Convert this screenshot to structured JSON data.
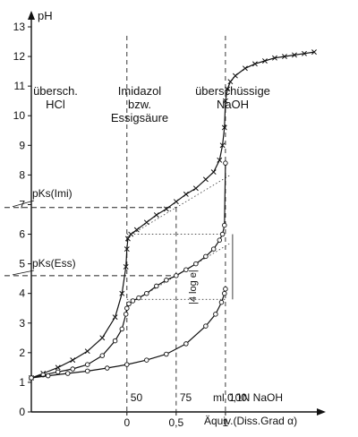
{
  "chart_data": {
    "type": "line",
    "title": "",
    "ylabel": "pH",
    "xlabel": "Äquiv.(Diss.Grad α)",
    "ylim": [
      0,
      13
    ],
    "xlim": [
      -1,
      2
    ],
    "y_ticks": [
      "0",
      "1",
      "2",
      "3",
      "4",
      "5",
      "6",
      "7",
      "8",
      "9",
      "10",
      "11",
      "12",
      "13"
    ],
    "x_ticks": [
      "0",
      "0,5",
      "1"
    ],
    "ml_ticks": [
      "50",
      "75",
      "100"
    ],
    "ml_label": "ml 0,1N NaOH",
    "grid": false,
    "regions": [
      {
        "lines": [
          "übersch.",
          "HCl"
        ]
      },
      {
        "lines": [
          "Imidazol",
          "bzw.",
          "Essigsäure"
        ]
      },
      {
        "lines": [
          "überschüssige",
          "NaOH"
        ]
      }
    ],
    "annotations": {
      "pks_imi": "pKs(Imi)",
      "pks_ess": "pKs(Ess)",
      "bracket_label": "|4 log e|"
    },
    "pKs_imi": 6.9,
    "pKs_ess": 4.6,
    "series": [
      {
        "marker": "x",
        "x": [
          -0.97,
          -0.85,
          -0.7,
          -0.55,
          -0.4,
          -0.25,
          -0.12,
          -0.05,
          -0.01,
          0.0,
          0.01,
          0.04,
          0.1,
          0.2,
          0.3,
          0.4,
          0.5,
          0.6,
          0.7,
          0.8,
          0.88,
          0.94,
          0.97,
          0.99,
          1.0,
          1.02,
          1.05,
          1.1,
          1.2,
          1.3,
          1.4,
          1.5,
          1.6,
          1.7,
          1.8,
          1.9
        ],
        "y": [
          1.15,
          1.3,
          1.5,
          1.75,
          2.05,
          2.5,
          3.2,
          4.0,
          4.9,
          5.5,
          5.85,
          6.0,
          6.15,
          6.4,
          6.65,
          6.85,
          7.1,
          7.35,
          7.55,
          7.85,
          8.1,
          8.5,
          9.0,
          9.6,
          10.5,
          10.9,
          11.15,
          11.35,
          11.6,
          11.75,
          11.85,
          11.95,
          12.0,
          12.05,
          12.1,
          12.15
        ]
      },
      {
        "marker": "o",
        "x": [
          -0.97,
          -0.85,
          -0.7,
          -0.55,
          -0.4,
          -0.25,
          -0.12,
          -0.05,
          -0.01,
          0.0,
          0.02,
          0.06,
          0.12,
          0.2,
          0.3,
          0.4,
          0.5,
          0.6,
          0.7,
          0.8,
          0.88,
          0.94,
          0.97,
          0.99,
          1.0
        ],
        "y": [
          1.15,
          1.25,
          1.35,
          1.45,
          1.6,
          1.9,
          2.4,
          2.8,
          3.3,
          3.5,
          3.65,
          3.75,
          3.85,
          4.0,
          4.25,
          4.45,
          4.6,
          4.8,
          5.0,
          5.25,
          5.5,
          5.8,
          6.0,
          6.3,
          8.4
        ]
      },
      {
        "marker": "o",
        "x": [
          -0.97,
          -0.8,
          -0.6,
          -0.4,
          -0.2,
          0.0,
          0.2,
          0.4,
          0.6,
          0.8,
          0.9,
          0.96,
          0.99,
          1.0
        ],
        "y": [
          1.15,
          1.22,
          1.3,
          1.38,
          1.48,
          1.6,
          1.75,
          1.95,
          2.3,
          2.9,
          3.3,
          3.7,
          4.0,
          4.15
        ]
      }
    ]
  }
}
